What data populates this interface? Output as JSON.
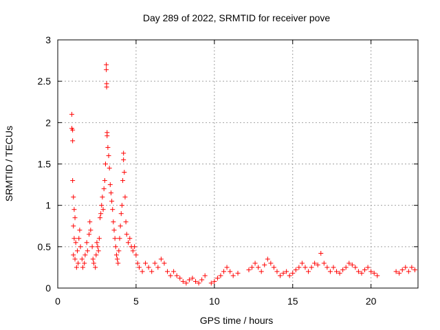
{
  "chart_data": {
    "type": "scatter",
    "title": "Day 289 of 2022, SRMTID for receiver pove",
    "xlabel": "GPS time / hours",
    "ylabel": "SRMTID / TECUs",
    "xlim": [
      0,
      23
    ],
    "ylim": [
      0,
      3
    ],
    "xticks": [
      0,
      5,
      10,
      15,
      20
    ],
    "xtick_labels": [
      "0",
      "5",
      "10",
      "15",
      "20"
    ],
    "yticks": [
      0,
      0.5,
      1,
      1.5,
      2,
      2.5,
      3
    ],
    "ytick_labels": [
      "0",
      "0.5",
      "1",
      "1.5",
      "2",
      "2.5",
      "3"
    ],
    "grid": true,
    "marker": "plus",
    "color": "#ff0000",
    "series": [
      {
        "name": "SRMTID",
        "points": [
          [
            0.9,
            2.1
          ],
          [
            0.9,
            1.93
          ],
          [
            0.95,
            1.91
          ],
          [
            0.95,
            1.78
          ],
          [
            0.95,
            1.3
          ],
          [
            1.0,
            1.1
          ],
          [
            1.05,
            0.95
          ],
          [
            1.1,
            0.85
          ],
          [
            1.0,
            0.75
          ],
          [
            1.05,
            0.6
          ],
          [
            1.15,
            0.55
          ],
          [
            1.0,
            0.4
          ],
          [
            1.1,
            0.35
          ],
          [
            1.2,
            0.25
          ],
          [
            1.3,
            0.3
          ],
          [
            1.25,
            0.45
          ],
          [
            1.35,
            0.6
          ],
          [
            1.4,
            0.7
          ],
          [
            1.45,
            0.5
          ],
          [
            1.55,
            0.35
          ],
          [
            1.6,
            0.25
          ],
          [
            1.7,
            0.3
          ],
          [
            1.75,
            0.4
          ],
          [
            1.85,
            0.55
          ],
          [
            1.9,
            0.45
          ],
          [
            2.0,
            0.65
          ],
          [
            2.05,
            0.8
          ],
          [
            2.1,
            0.7
          ],
          [
            2.2,
            0.5
          ],
          [
            2.25,
            0.35
          ],
          [
            2.3,
            0.3
          ],
          [
            2.4,
            0.25
          ],
          [
            2.45,
            0.4
          ],
          [
            2.5,
            0.55
          ],
          [
            2.55,
            0.5
          ],
          [
            2.6,
            0.45
          ],
          [
            2.65,
            0.6
          ],
          [
            2.7,
            0.85
          ],
          [
            2.75,
            0.9
          ],
          [
            2.8,
            1.0
          ],
          [
            2.85,
            1.1
          ],
          [
            2.9,
            0.95
          ],
          [
            2.95,
            1.2
          ],
          [
            3.0,
            1.3
          ],
          [
            3.05,
            1.5
          ],
          [
            3.1,
            2.7
          ],
          [
            3.1,
            2.64
          ],
          [
            3.12,
            2.47
          ],
          [
            3.12,
            2.43
          ],
          [
            3.15,
            1.88
          ],
          [
            3.15,
            1.84
          ],
          [
            3.2,
            1.7
          ],
          [
            3.25,
            1.6
          ],
          [
            3.3,
            1.45
          ],
          [
            3.35,
            1.25
          ],
          [
            3.4,
            1.15
          ],
          [
            3.45,
            1.05
          ],
          [
            3.5,
            0.95
          ],
          [
            3.55,
            0.8
          ],
          [
            3.6,
            0.7
          ],
          [
            3.65,
            0.6
          ],
          [
            3.7,
            0.5
          ],
          [
            3.75,
            0.4
          ],
          [
            3.8,
            0.35
          ],
          [
            3.85,
            0.3
          ],
          [
            3.9,
            0.45
          ],
          [
            3.95,
            0.6
          ],
          [
            4.0,
            0.75
          ],
          [
            4.05,
            0.9
          ],
          [
            4.1,
            1.0
          ],
          [
            4.15,
            1.3
          ],
          [
            4.2,
            1.55
          ],
          [
            4.2,
            1.63
          ],
          [
            4.25,
            1.4
          ],
          [
            4.3,
            1.1
          ],
          [
            4.35,
            0.8
          ],
          [
            4.4,
            0.65
          ],
          [
            4.5,
            0.55
          ],
          [
            4.6,
            0.6
          ],
          [
            4.7,
            0.5
          ],
          [
            4.8,
            0.45
          ],
          [
            4.9,
            0.5
          ],
          [
            5.0,
            0.4
          ],
          [
            5.1,
            0.3
          ],
          [
            5.2,
            0.25
          ],
          [
            5.4,
            0.2
          ],
          [
            5.6,
            0.3
          ],
          [
            5.8,
            0.25
          ],
          [
            6.0,
            0.2
          ],
          [
            6.2,
            0.3
          ],
          [
            6.4,
            0.25
          ],
          [
            6.6,
            0.35
          ],
          [
            6.8,
            0.3
          ],
          [
            7.0,
            0.2
          ],
          [
            7.2,
            0.15
          ],
          [
            7.4,
            0.2
          ],
          [
            7.6,
            0.15
          ],
          [
            7.8,
            0.12
          ],
          [
            8.0,
            0.08
          ],
          [
            8.2,
            0.06
          ],
          [
            8.4,
            0.1
          ],
          [
            8.6,
            0.12
          ],
          [
            8.8,
            0.08
          ],
          [
            9.0,
            0.06
          ],
          [
            9.2,
            0.1
          ],
          [
            9.4,
            0.15
          ],
          [
            9.8,
            0.06
          ],
          [
            10.0,
            0.08
          ],
          [
            10.2,
            0.12
          ],
          [
            10.4,
            0.15
          ],
          [
            10.6,
            0.2
          ],
          [
            10.8,
            0.25
          ],
          [
            11.0,
            0.2
          ],
          [
            11.2,
            0.15
          ],
          [
            11.5,
            0.18
          ],
          [
            12.2,
            0.22
          ],
          [
            12.4,
            0.25
          ],
          [
            12.6,
            0.3
          ],
          [
            12.8,
            0.25
          ],
          [
            13.0,
            0.2
          ],
          [
            13.2,
            0.28
          ],
          [
            13.4,
            0.35
          ],
          [
            13.6,
            0.3
          ],
          [
            13.8,
            0.25
          ],
          [
            14.0,
            0.2
          ],
          [
            14.2,
            0.15
          ],
          [
            14.4,
            0.18
          ],
          [
            14.6,
            0.2
          ],
          [
            14.8,
            0.15
          ],
          [
            15.0,
            0.18
          ],
          [
            15.2,
            0.22
          ],
          [
            15.4,
            0.25
          ],
          [
            15.6,
            0.3
          ],
          [
            15.8,
            0.25
          ],
          [
            16.0,
            0.2
          ],
          [
            16.2,
            0.25
          ],
          [
            16.4,
            0.3
          ],
          [
            16.6,
            0.28
          ],
          [
            16.8,
            0.42
          ],
          [
            17.0,
            0.3
          ],
          [
            17.2,
            0.25
          ],
          [
            17.4,
            0.2
          ],
          [
            17.6,
            0.25
          ],
          [
            17.8,
            0.2
          ],
          [
            18.0,
            0.18
          ],
          [
            18.2,
            0.22
          ],
          [
            18.4,
            0.25
          ],
          [
            18.6,
            0.3
          ],
          [
            18.8,
            0.28
          ],
          [
            19.0,
            0.25
          ],
          [
            19.2,
            0.2
          ],
          [
            19.4,
            0.18
          ],
          [
            19.6,
            0.22
          ],
          [
            19.8,
            0.25
          ],
          [
            20.0,
            0.2
          ],
          [
            20.2,
            0.18
          ],
          [
            20.4,
            0.15
          ],
          [
            21.6,
            0.2
          ],
          [
            21.8,
            0.18
          ],
          [
            22.0,
            0.22
          ],
          [
            22.2,
            0.25
          ],
          [
            22.4,
            0.2
          ],
          [
            22.6,
            0.25
          ],
          [
            22.8,
            0.22
          ]
        ]
      }
    ]
  }
}
